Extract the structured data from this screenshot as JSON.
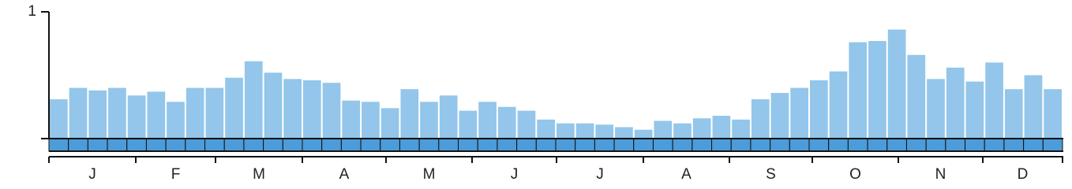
{
  "chart_data": {
    "type": "bar",
    "values": [
      0.31,
      0.4,
      0.38,
      0.4,
      0.34,
      0.37,
      0.29,
      0.4,
      0.4,
      0.48,
      0.61,
      0.52,
      0.47,
      0.46,
      0.44,
      0.3,
      0.29,
      0.24,
      0.39,
      0.29,
      0.34,
      0.22,
      0.29,
      0.25,
      0.22,
      0.15,
      0.12,
      0.12,
      0.11,
      0.09,
      0.07,
      0.14,
      0.12,
      0.16,
      0.18,
      0.15,
      0.31,
      0.36,
      0.4,
      0.46,
      0.53,
      0.76,
      0.77,
      0.86,
      0.66,
      0.47,
      0.56,
      0.45,
      0.6,
      0.39,
      0.5,
      0.39
    ],
    "color": "#93c6ea",
    "strip_color": "#4b9cd8",
    "months": [
      "J",
      "F",
      "M",
      "A",
      "M",
      "J",
      "J",
      "A",
      "S",
      "O",
      "N",
      "D"
    ],
    "ylim": [
      0,
      1
    ],
    "yticks": [
      1
    ]
  }
}
